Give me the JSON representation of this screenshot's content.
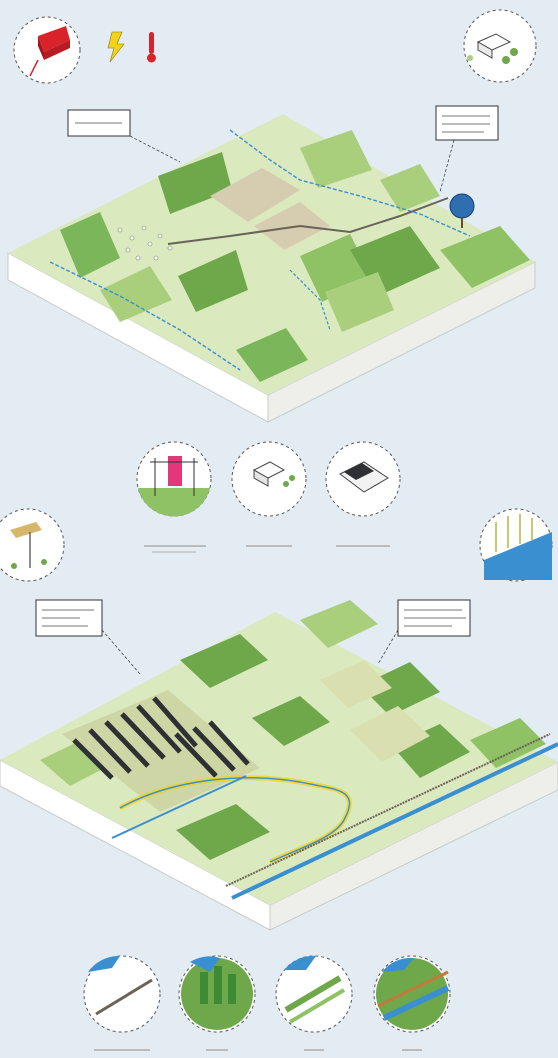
{
  "colors": {
    "background": "#e3ebf3",
    "land_light": "#dbe9bf",
    "land_mid": "#a9cf7d",
    "land_dark": "#6ea84b",
    "water": "#3a8fd0",
    "road": "#6b6259",
    "solar": "#2e3033",
    "slab_side": "#f7f7f4",
    "accent_red": "#d9232b",
    "accent_yellow": "#f2d21a",
    "accent_pink": "#e6357a",
    "badge_outline": "#333333"
  },
  "icons": {
    "top_left_badge": "heat-house-icon",
    "lightning": "lightning-icon",
    "thermometer": "thermometer-icon",
    "top_right_badge": "village-settlement-icon",
    "tree_marker": "globe-tree-icon",
    "mid_left_badge": "pylon-substation-icon",
    "mid_center_badge": "farm-buildings-icon",
    "mid_right_badge": "solar-roof-icon",
    "lower_left_badge": "wind-turbines-icon",
    "lower_right_badge": "reed-wetland-icon",
    "bottom_badges": [
      "railway-icon",
      "forest-icon",
      "hedgerow-icon",
      "river-bank-icon"
    ]
  },
  "captions": [],
  "callouts": []
}
